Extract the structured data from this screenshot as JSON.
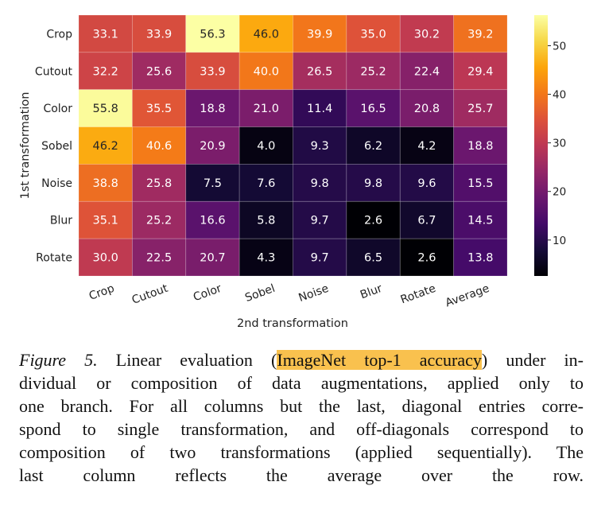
{
  "chart_data": {
    "type": "heatmap",
    "xlabel": "2nd transformation",
    "ylabel": "1st transformation",
    "x_categories": [
      "Crop",
      "Cutout",
      "Color",
      "Sobel",
      "Noise",
      "Blur",
      "Rotate",
      "Average"
    ],
    "y_categories": [
      "Crop",
      "Cutout",
      "Color",
      "Sobel",
      "Noise",
      "Blur",
      "Rotate"
    ],
    "values": [
      [
        33.1,
        33.9,
        56.3,
        46.0,
        39.9,
        35.0,
        30.2,
        39.2
      ],
      [
        32.2,
        25.6,
        33.9,
        40.0,
        26.5,
        25.2,
        22.4,
        29.4
      ],
      [
        55.8,
        35.5,
        18.8,
        21.0,
        11.4,
        16.5,
        20.8,
        25.7
      ],
      [
        46.2,
        40.6,
        20.9,
        4.0,
        9.3,
        6.2,
        4.2,
        18.8
      ],
      [
        38.8,
        25.8,
        7.5,
        7.6,
        9.8,
        9.8,
        9.6,
        15.5
      ],
      [
        35.1,
        25.2,
        16.6,
        5.8,
        9.7,
        2.6,
        6.7,
        14.5
      ],
      [
        30.0,
        22.5,
        20.7,
        4.3,
        9.7,
        6.5,
        2.6,
        13.8
      ]
    ],
    "colormap": "inferno",
    "color_range": [
      2.6,
      56.3
    ],
    "colorbar_ticks": [
      10,
      20,
      30,
      40,
      50
    ]
  },
  "caption": {
    "figure_label": "Figure 5.",
    "line1_a": " Linear evaluation (",
    "line1_highlight": "ImageNet top-1 accuracy",
    "line1_b": ") under in-",
    "lines": [
      "dividual or composition of data augmentations, applied only to",
      "one branch. For all columns but the last, diagonal entries corre-",
      "spond to single transformation, and off-diagonals correspond to",
      "composition of two transformations (applied sequentially). The",
      "last column reflects the average over the row."
    ],
    "highlight_color": "#f9c14e"
  }
}
